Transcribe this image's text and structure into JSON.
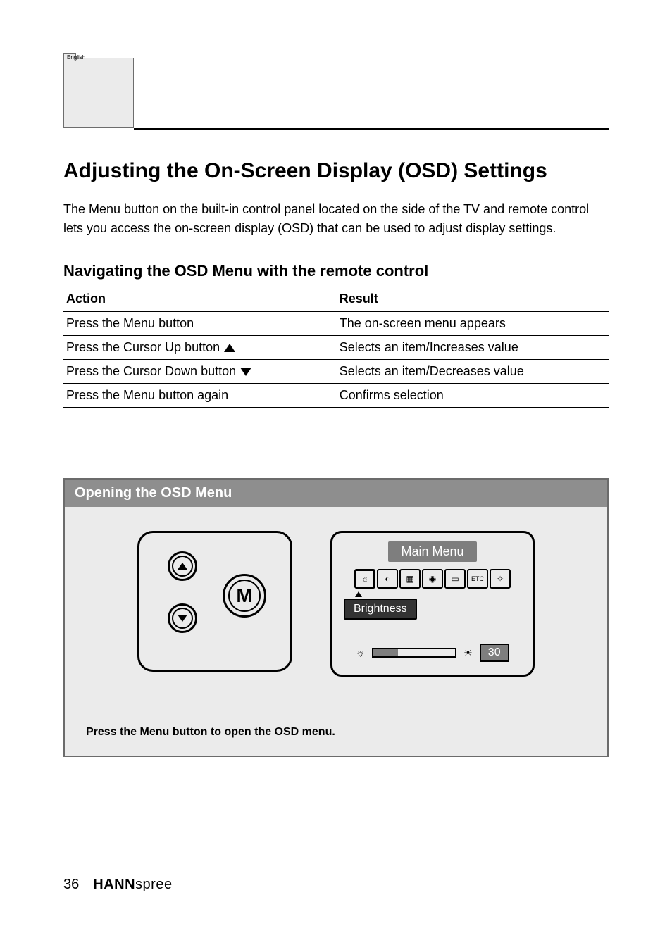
{
  "tab_label": "English",
  "heading": "Adjusting the On-Screen Display (OSD) Settings",
  "intro_para": "The Menu button on the built-in control panel located on the side of the TV and remote control lets you access the on-screen display (OSD) that can be used to adjust display settings.",
  "nav_heading": "Navigating the OSD Menu with the remote control",
  "table": {
    "cols": [
      "Action",
      "Result"
    ],
    "rows": [
      [
        "Press the Menu button",
        "The on-screen menu appears"
      ],
      [
        "Press the Cursor Up button",
        "Selects an item/Increases value"
      ],
      [
        "Press the Cursor Down button",
        "Selects an item/Decreases value"
      ],
      [
        "Press the Menu button again",
        "Confirms selection"
      ]
    ]
  },
  "demo": {
    "title": "Opening the OSD Menu",
    "menu_button_label": "M",
    "menu_title": "Main  Menu",
    "icons": [
      "☼",
      "◐",
      "▦",
      "◉",
      "▭",
      "ETC",
      "✧"
    ],
    "selected_index": 0,
    "label": "Brightness",
    "value": 30,
    "value_display": "30",
    "slider_percent": 30,
    "caption": "Press the Menu button to open the OSD menu."
  },
  "footer": {
    "page_number": "36",
    "logo_bold": "HANN",
    "logo_rest": "spree"
  }
}
